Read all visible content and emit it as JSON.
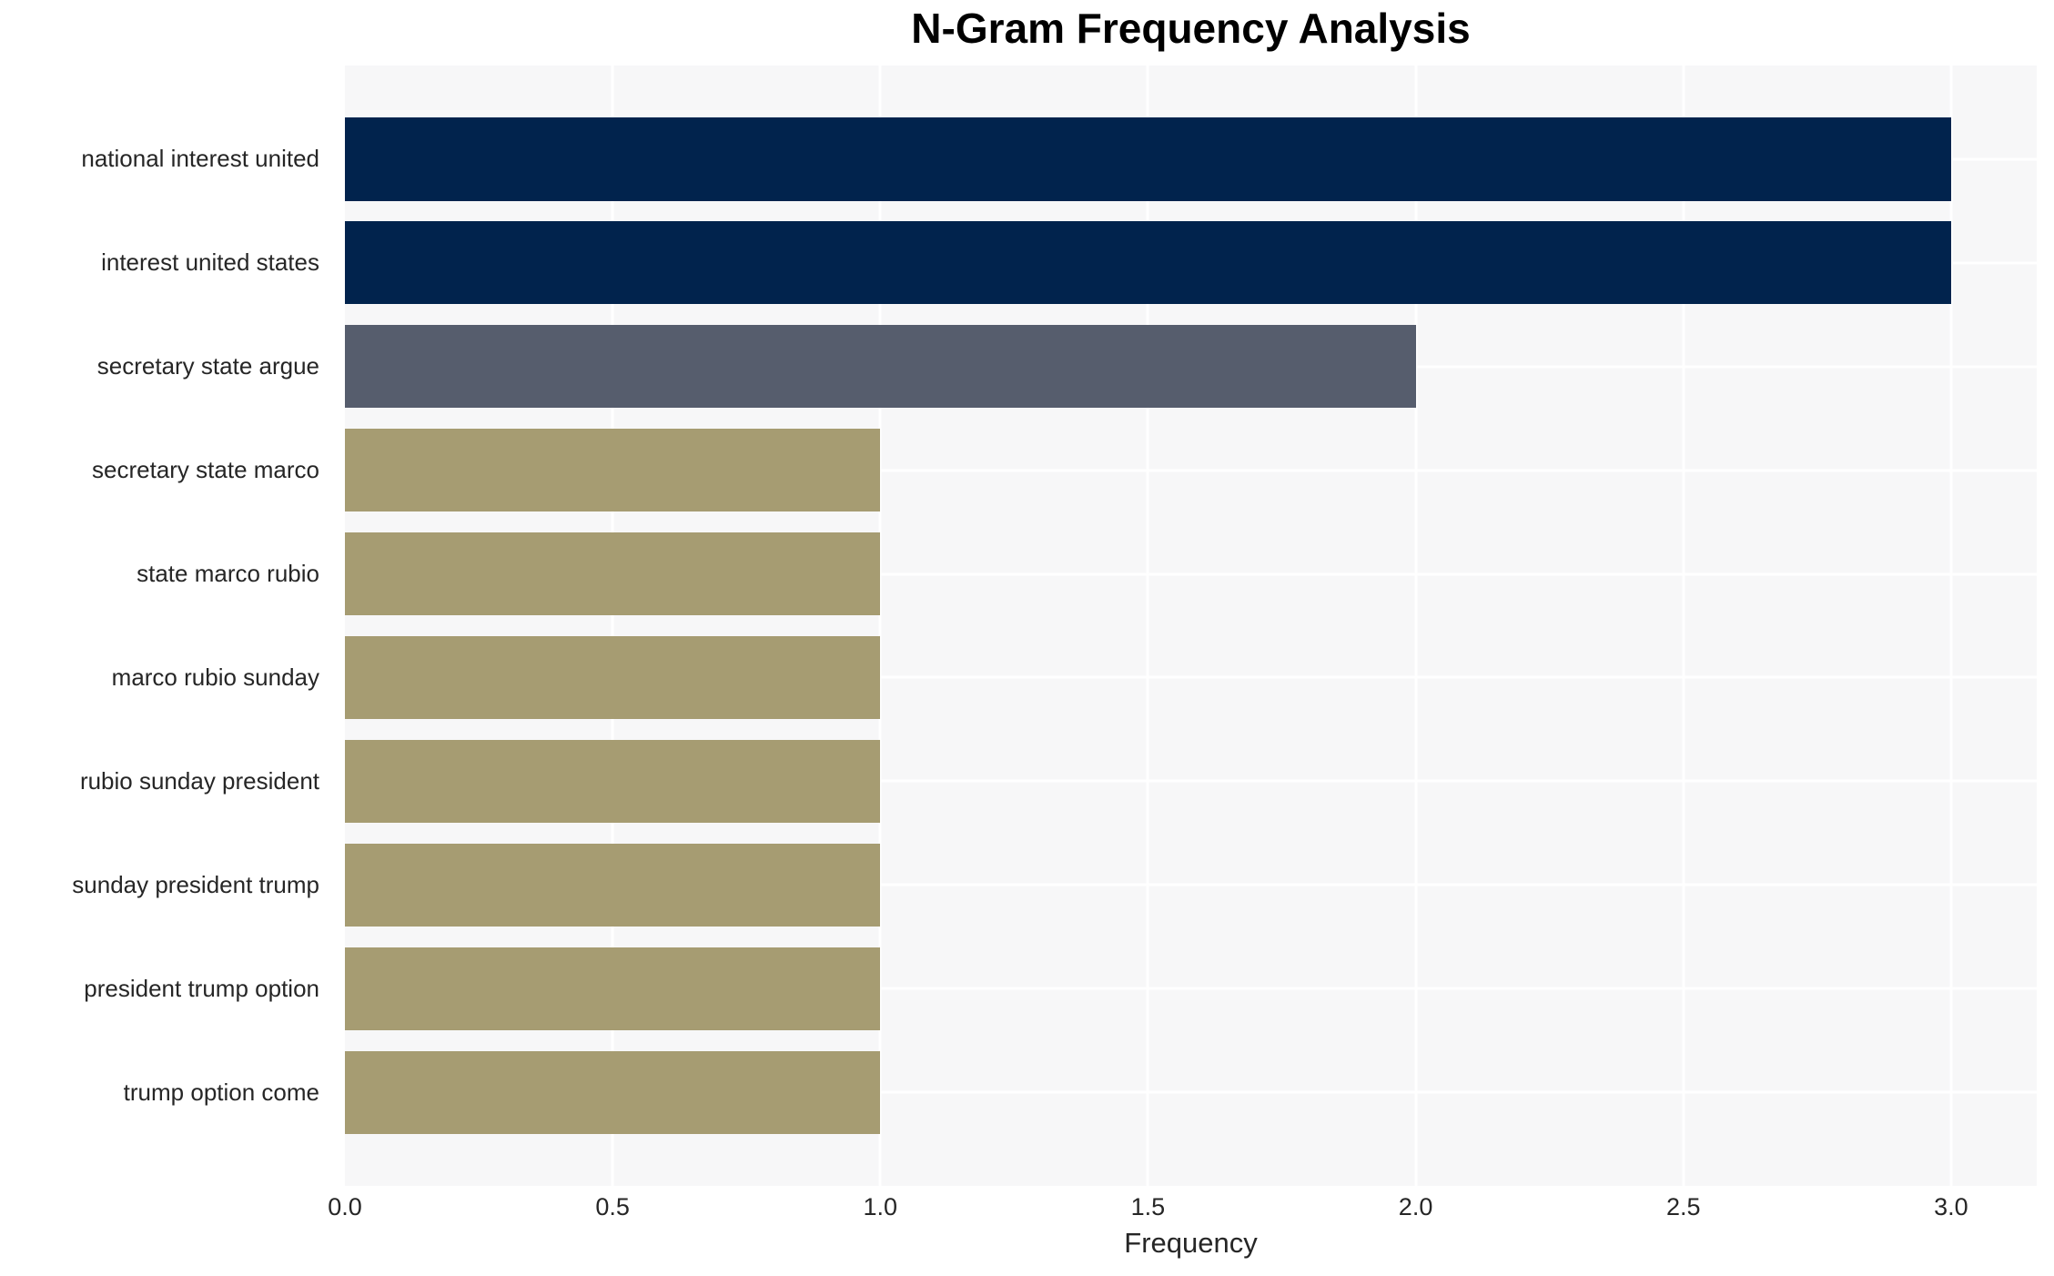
{
  "chart_data": {
    "type": "bar",
    "orientation": "horizontal",
    "title": "N-Gram Frequency Analysis",
    "xlabel": "Frequency",
    "ylabel": "",
    "categories": [
      "national interest united",
      "interest united states",
      "secretary state argue",
      "secretary state marco",
      "state marco rubio",
      "marco rubio sunday",
      "rubio sunday president",
      "sunday president trump",
      "president trump option",
      "trump option come"
    ],
    "values": [
      3,
      3,
      2,
      1,
      1,
      1,
      1,
      1,
      1,
      1
    ],
    "xlim": [
      0,
      3.16
    ],
    "xticks": [
      {
        "value": 0.0,
        "label": "0.0"
      },
      {
        "value": 0.5,
        "label": "0.5"
      },
      {
        "value": 1.0,
        "label": "1.0"
      },
      {
        "value": 1.5,
        "label": "1.5"
      },
      {
        "value": 2.0,
        "label": "2.0"
      },
      {
        "value": 2.5,
        "label": "2.5"
      },
      {
        "value": 3.0,
        "label": "3.0"
      }
    ],
    "grid": true,
    "legend": null,
    "colors": {
      "bars": [
        "#01234d",
        "#01234d",
        "#565d6d",
        "#a69c72",
        "#a69c72",
        "#a69c72",
        "#a69c72",
        "#a69c72",
        "#a69c72",
        "#a69c72"
      ],
      "plot_background": "#f7f7f8",
      "figure_background": "#ffffff",
      "gridline": "#ffffff",
      "tick_text": "#262626",
      "title_text": "#000000"
    }
  }
}
